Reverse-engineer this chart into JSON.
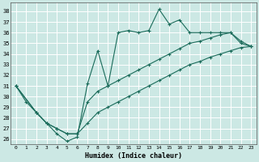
{
  "xlabel": "Humidex (Indice chaleur)",
  "bg_color": "#cce8e4",
  "line_color": "#1a6b5a",
  "grid_color": "#ffffff",
  "xlim": [
    -0.5,
    23.5
  ],
  "ylim": [
    25.5,
    38.8
  ],
  "yticks": [
    26,
    27,
    28,
    29,
    30,
    31,
    32,
    33,
    34,
    35,
    36,
    37,
    38
  ],
  "xticks": [
    0,
    1,
    2,
    3,
    4,
    5,
    6,
    7,
    8,
    9,
    10,
    11,
    12,
    13,
    14,
    15,
    16,
    17,
    18,
    19,
    20,
    21,
    22,
    23
  ],
  "line1_x": [
    0,
    1,
    2,
    3,
    4,
    5,
    6,
    7,
    8,
    9,
    10,
    11,
    12,
    13,
    14,
    15,
    16,
    17,
    18,
    19,
    20,
    21,
    22,
    23
  ],
  "line1_y": [
    31,
    29.5,
    28.5,
    27.5,
    26.5,
    25.8,
    26.2,
    31.2,
    34.3,
    31,
    36,
    36.2,
    36,
    36.2,
    38.2,
    36.8,
    37.2,
    36,
    36,
    36,
    36,
    36,
    35,
    34.7
  ],
  "line2_x": [
    0,
    2,
    3,
    4,
    5,
    6,
    7,
    8,
    9,
    10,
    11,
    12,
    13,
    14,
    15,
    16,
    17,
    18,
    19,
    20,
    21,
    22,
    23
  ],
  "line2_y": [
    31,
    28.5,
    27.5,
    27,
    26.5,
    26.5,
    29.5,
    30.5,
    31,
    31.5,
    32,
    32.5,
    33,
    33.5,
    34,
    34.5,
    35,
    35.2,
    35.5,
    35.8,
    36,
    35.2,
    34.7
  ],
  "line3_x": [
    0,
    2,
    3,
    4,
    5,
    6,
    7,
    8,
    9,
    10,
    11,
    12,
    13,
    14,
    15,
    16,
    17,
    18,
    19,
    20,
    21,
    22,
    23
  ],
  "line3_y": [
    31,
    28.5,
    27.5,
    27,
    26.5,
    26.5,
    27.5,
    28.5,
    29,
    29.5,
    30,
    30.5,
    31,
    31.5,
    32,
    32.5,
    33,
    33.3,
    33.7,
    34,
    34.3,
    34.6,
    34.7
  ]
}
